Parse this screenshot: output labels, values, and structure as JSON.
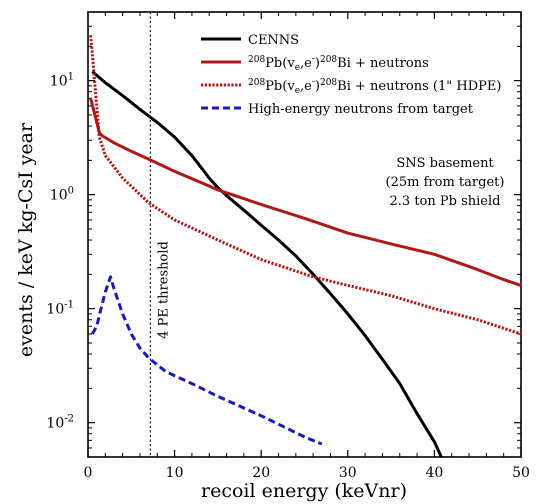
{
  "chart_data": {
    "type": "line",
    "xlabel": "recoil energy (keVnr)",
    "ylabel": "events / keV kg-CsI year",
    "x_scale": "linear",
    "y_scale": "log",
    "xlim": [
      0,
      50
    ],
    "ylim": [
      0.005,
      40
    ],
    "x_ticks": [
      0,
      10,
      20,
      30,
      40,
      50
    ],
    "y_ticks": [
      {
        "value": 0.01,
        "mantissa": "10",
        "exponent": "-2"
      },
      {
        "value": 0.1,
        "mantissa": "10",
        "exponent": "-1"
      },
      {
        "value": 1,
        "mantissa": "10",
        "exponent": "0"
      },
      {
        "value": 10,
        "mantissa": "10",
        "exponent": "1"
      }
    ],
    "grid": false,
    "legend_position": "top-right",
    "threshold": {
      "x": 7.2,
      "label": "4 PE threshold"
    },
    "annotation_lines": [
      "SNS basement",
      "(25m from target)",
      "2.3 ton Pb shield"
    ],
    "series": [
      {
        "name": "CENNS",
        "color": "#000000",
        "style": "solid",
        "points": [
          [
            0.5,
            12
          ],
          [
            2,
            9.6
          ],
          [
            4,
            7.4
          ],
          [
            6,
            5.6
          ],
          [
            8,
            4.3
          ],
          [
            10,
            3.2
          ],
          [
            12,
            2.2
          ],
          [
            14,
            1.4
          ],
          [
            15,
            1.15
          ],
          [
            16,
            0.98
          ],
          [
            18,
            0.73
          ],
          [
            20,
            0.54
          ],
          [
            22,
            0.4
          ],
          [
            24,
            0.29
          ],
          [
            26,
            0.2
          ],
          [
            28,
            0.135
          ],
          [
            30,
            0.09
          ],
          [
            32,
            0.058
          ],
          [
            34,
            0.036
          ],
          [
            36,
            0.022
          ],
          [
            38,
            0.012
          ],
          [
            40,
            0.0068
          ],
          [
            40.8,
            0.005
          ]
        ]
      },
      {
        "name_parts": [
          "208",
          "Pb(v",
          "e",
          ",e",
          "-",
          ")",
          "208",
          "Bi + neutrons"
        ],
        "color": "#b01818",
        "style": "solid",
        "points": [
          [
            0.3,
            7
          ],
          [
            0.8,
            5
          ],
          [
            1.3,
            3.5
          ],
          [
            1.6,
            3.3
          ],
          [
            3,
            2.85
          ],
          [
            5,
            2.4
          ],
          [
            7,
            2.05
          ],
          [
            10,
            1.6
          ],
          [
            13,
            1.28
          ],
          [
            15,
            1.1
          ],
          [
            17,
            0.98
          ],
          [
            20,
            0.82
          ],
          [
            25,
            0.62
          ],
          [
            30,
            0.46
          ],
          [
            35,
            0.37
          ],
          [
            40,
            0.3
          ],
          [
            45,
            0.22
          ],
          [
            48,
            0.18
          ],
          [
            50,
            0.16
          ]
        ]
      },
      {
        "name_parts": [
          "208",
          "Pb(v",
          "e",
          ",e",
          "-",
          ")",
          "208",
          "Bi + neutrons (1\" HDPE)"
        ],
        "color": "#b01818",
        "style": "dotted",
        "points": [
          [
            0.3,
            25
          ],
          [
            0.6,
            14
          ],
          [
            1,
            6
          ],
          [
            1.3,
            3.2
          ],
          [
            2,
            2.2
          ],
          [
            4,
            1.4
          ],
          [
            7,
            0.85
          ],
          [
            10,
            0.6
          ],
          [
            15,
            0.4
          ],
          [
            20,
            0.27
          ],
          [
            26,
            0.19
          ],
          [
            30,
            0.16
          ],
          [
            35,
            0.13
          ],
          [
            40,
            0.1
          ],
          [
            45,
            0.08
          ],
          [
            50,
            0.06
          ]
        ]
      },
      {
        "name": "High-energy neutrons from target",
        "color": "#1a1ab8",
        "style": "dashed",
        "points": [
          [
            0.5,
            0.06
          ],
          [
            1,
            0.07
          ],
          [
            1.5,
            0.1
          ],
          [
            2,
            0.14
          ],
          [
            2.6,
            0.19
          ],
          [
            3,
            0.15
          ],
          [
            4,
            0.09
          ],
          [
            5,
            0.06
          ],
          [
            6,
            0.045
          ],
          [
            7,
            0.037
          ],
          [
            9,
            0.028
          ],
          [
            12,
            0.022
          ],
          [
            15,
            0.017
          ],
          [
            20,
            0.0115
          ],
          [
            25,
            0.0075
          ],
          [
            27,
            0.0065
          ]
        ]
      }
    ]
  }
}
